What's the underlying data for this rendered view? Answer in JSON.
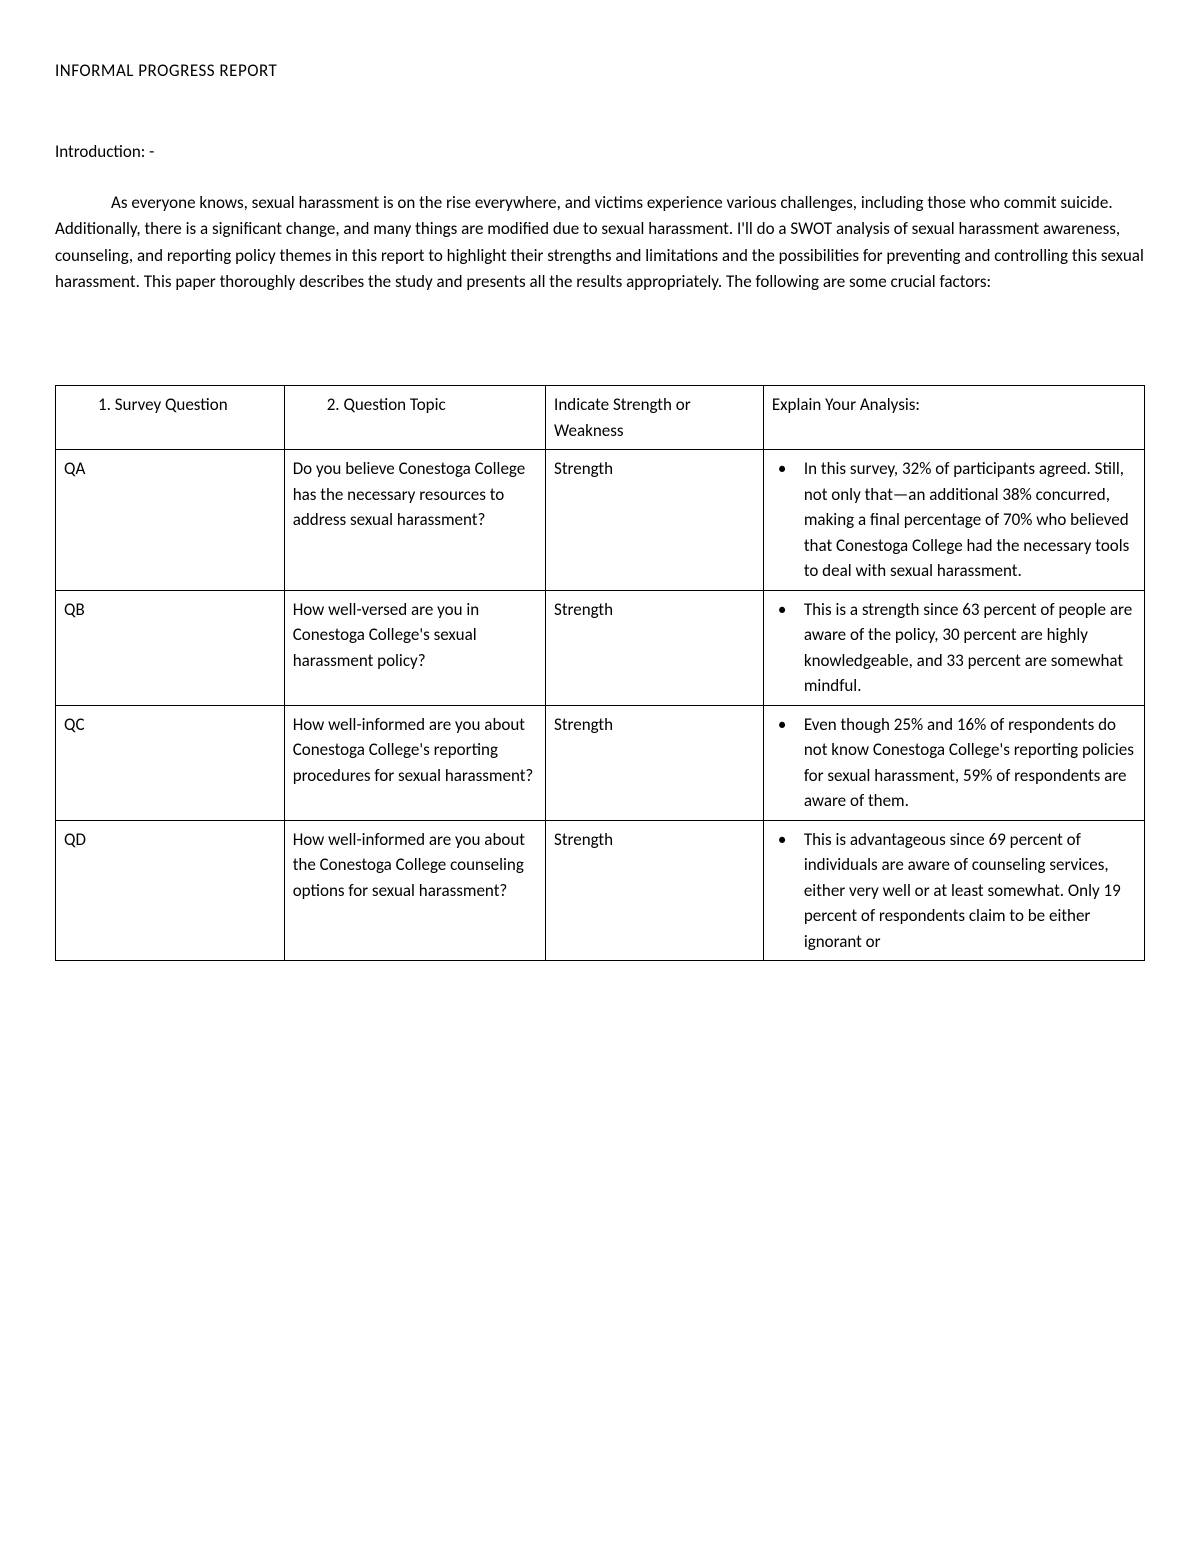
{
  "title": "INFORMAL PROGRESS REPORT",
  "intro": {
    "heading": "Introduction: -",
    "body": "As everyone knows, sexual harassment is on the rise everywhere, and victims experience various challenges, including those who commit suicide. Additionally, there is a significant change, and many things are modified due to sexual harassment. I'll do a SWOT analysis of sexual harassment awareness, counseling, and reporting policy themes in this report to highlight their strengths and limitations and the possibilities for preventing and controlling this sexual harassment. This paper thoroughly describes the study and presents all the results appropriately. The following are some crucial factors:"
  },
  "table": {
    "headers": {
      "col1": "1.   Survey Question",
      "col2": "2.   Question Topic",
      "col3": "Indicate Strength or Weakness",
      "col4": "Explain Your Analysis:"
    },
    "rows": [
      {
        "q": "QA",
        "topic": "Do you believe Conestoga College has the necessary resources to address sexual harassment?",
        "sw": "Strength",
        "analysis": "In this survey, 32% of participants agreed. Still, not only that—an additional 38% concurred, making a final percentage of 70% who believed that Conestoga College had the necessary tools to deal with sexual harassment."
      },
      {
        "q": "QB",
        "topic": "How well-versed are you in Conestoga College's sexual harassment policy?",
        "sw": "Strength",
        "analysis": "This is a strength since 63 percent of people are aware of the policy, 30 percent are highly knowledgeable, and 33 percent are somewhat mindful."
      },
      {
        "q": "QC",
        "topic": "How well-informed are you about Conestoga College's reporting procedures for sexual harassment?",
        "sw": "Strength",
        "analysis": "Even though 25% and 16% of respondents do not know Conestoga College's reporting policies for sexual harassment, 59% of respondents are aware of them."
      },
      {
        "q": "QD",
        "topic": "How well-informed are you about the Conestoga College counseling options for sexual harassment?",
        "sw": "Strength",
        "analysis": "This is advantageous since 69 percent of individuals are aware of counseling services, either very well or at least somewhat. Only 19 percent of respondents claim to be either ignorant or"
      }
    ]
  },
  "style": {
    "page_bg": "#ffffff",
    "text_color": "#000000",
    "border_color": "#000000",
    "font_size_body": 17,
    "font_size_title": 17
  }
}
